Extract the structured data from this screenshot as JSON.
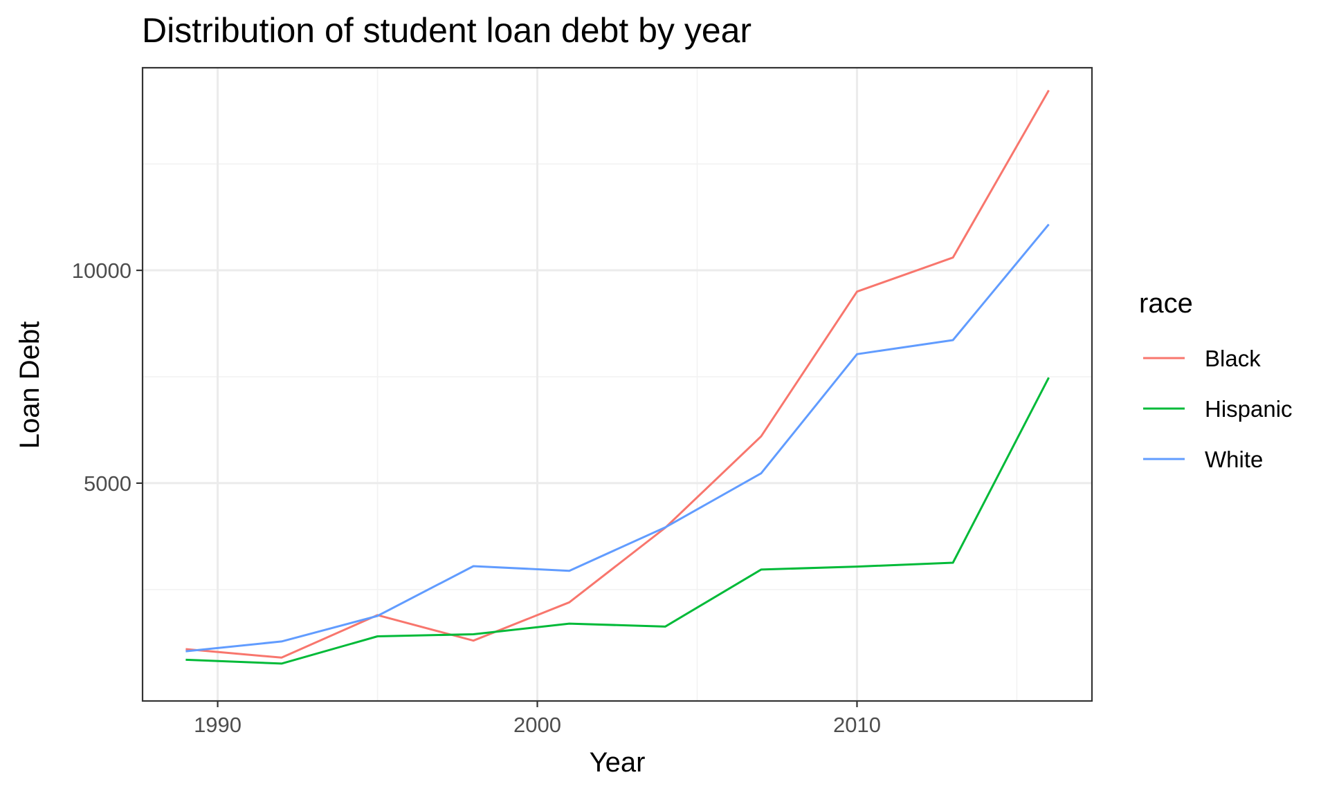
{
  "chart_data": {
    "type": "line",
    "title": "Distribution of student loan debt by year",
    "xlabel": "Year",
    "ylabel": "Loan Debt",
    "xlim": [
      1987.65,
      2017.35
    ],
    "ylim": [
      -118,
      14760
    ],
    "x_ticks": [
      1990,
      2000,
      2010
    ],
    "x_minor": [
      1995,
      2005,
      2015
    ],
    "y_ticks": [
      5000,
      10000
    ],
    "y_minor": [
      2500,
      7500,
      12500
    ],
    "grid": true,
    "legend": {
      "title": "race",
      "position": "right"
    },
    "x": [
      1989,
      1992,
      1995,
      1998,
      2001,
      2004,
      2007,
      2010,
      2013,
      2016
    ],
    "series": [
      {
        "name": "Black",
        "color": "#F8766D",
        "values": [
          1100,
          900,
          1900,
          1300,
          2200,
          3950,
          6100,
          9500,
          10300,
          14230
        ]
      },
      {
        "name": "Hispanic",
        "color": "#00BA38",
        "values": [
          850,
          760,
          1400,
          1450,
          1700,
          1630,
          2970,
          3040,
          3130,
          7480
        ]
      },
      {
        "name": "White",
        "color": "#619CFF",
        "values": [
          1050,
          1280,
          1880,
          3050,
          2940,
          3960,
          5230,
          8030,
          8360,
          11080
        ]
      }
    ]
  }
}
